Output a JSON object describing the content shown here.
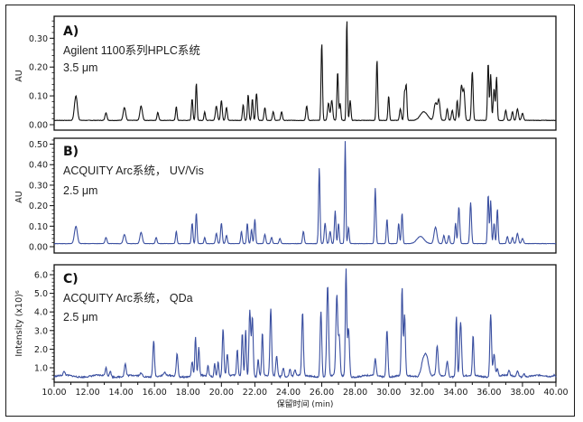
{
  "figure": {
    "xlabel": "保留时间 (min)",
    "x_ticks": [
      "10.00",
      "12.00",
      "14.00",
      "16.00",
      "18.00",
      "20.00",
      "22.00",
      "24.00",
      "26.00",
      "28.00",
      "30.00",
      "32.00",
      "34.00",
      "36.00",
      "38.00",
      "40.00"
    ]
  },
  "panels": [
    {
      "letter": "A)",
      "line1": "Agilent 1100系列HPLC系统",
      "line2": "3.5 μm",
      "ylabel": "AU",
      "y_ticks": [
        "0.00",
        "0.10",
        "0.20",
        "0.30"
      ],
      "color": "#111111"
    },
    {
      "letter": "B)",
      "line1": "ACQUITY Arc系统， UV/Vis",
      "line2": "2.5 μm",
      "ylabel": "AU",
      "y_ticks": [
        "0.00",
        "0.10",
        "0.20",
        "0.30",
        "0.40",
        "0.50"
      ],
      "color": "#3a4fa0"
    },
    {
      "letter": "C)",
      "line1": "ACQUITY Arc系统， QDa",
      "line2": "2.5 μm",
      "ylabel": "Intensity (x10)⁶",
      "y_ticks": [
        "1.0",
        "2.0",
        "3.0",
        "4.0",
        "5.0",
        "6.0"
      ],
      "color": "#3a4fa0"
    }
  ],
  "chart_data": [
    {
      "type": "line",
      "title": "A) Agilent 1100系列HPLC系统 3.5 μm",
      "xlabel": "保留时间 (min)",
      "ylabel": "AU",
      "xlim": [
        10,
        40
      ],
      "ylim": [
        0,
        0.37
      ],
      "baseline": 0.015,
      "peaks": [
        {
          "x": 11.3,
          "y": 0.085,
          "w": 0.12
        },
        {
          "x": 13.1,
          "y": 0.027,
          "w": 0.08
        },
        {
          "x": 14.2,
          "y": 0.045,
          "w": 0.1
        },
        {
          "x": 15.2,
          "y": 0.05,
          "w": 0.1
        },
        {
          "x": 16.2,
          "y": 0.028,
          "w": 0.07
        },
        {
          "x": 17.3,
          "y": 0.048,
          "w": 0.06
        },
        {
          "x": 18.25,
          "y": 0.075,
          "w": 0.06
        },
        {
          "x": 18.5,
          "y": 0.13,
          "w": 0.06
        },
        {
          "x": 19.0,
          "y": 0.03,
          "w": 0.06
        },
        {
          "x": 19.7,
          "y": 0.05,
          "w": 0.08
        },
        {
          "x": 20.0,
          "y": 0.07,
          "w": 0.07
        },
        {
          "x": 20.3,
          "y": 0.045,
          "w": 0.07
        },
        {
          "x": 21.3,
          "y": 0.055,
          "w": 0.06
        },
        {
          "x": 21.6,
          "y": 0.09,
          "w": 0.06
        },
        {
          "x": 21.85,
          "y": 0.075,
          "w": 0.06
        },
        {
          "x": 22.1,
          "y": 0.095,
          "w": 0.07
        },
        {
          "x": 22.6,
          "y": 0.045,
          "w": 0.07
        },
        {
          "x": 23.1,
          "y": 0.03,
          "w": 0.07
        },
        {
          "x": 23.6,
          "y": 0.03,
          "w": 0.07
        },
        {
          "x": 25.1,
          "y": 0.05,
          "w": 0.07
        },
        {
          "x": 26.0,
          "y": 0.27,
          "w": 0.06
        },
        {
          "x": 26.4,
          "y": 0.06,
          "w": 0.08
        },
        {
          "x": 26.6,
          "y": 0.07,
          "w": 0.08
        },
        {
          "x": 26.95,
          "y": 0.17,
          "w": 0.06
        },
        {
          "x": 27.1,
          "y": 0.06,
          "w": 0.06
        },
        {
          "x": 27.5,
          "y": 0.355,
          "w": 0.05
        },
        {
          "x": 27.7,
          "y": 0.07,
          "w": 0.06
        },
        {
          "x": 29.3,
          "y": 0.21,
          "w": 0.06
        },
        {
          "x": 30.0,
          "y": 0.085,
          "w": 0.06
        },
        {
          "x": 30.7,
          "y": 0.04,
          "w": 0.07
        },
        {
          "x": 30.95,
          "y": 0.095,
          "w": 0.06
        },
        {
          "x": 31.05,
          "y": 0.12,
          "w": 0.06
        },
        {
          "x": 32.1,
          "y": 0.03,
          "w": 0.3
        },
        {
          "x": 32.8,
          "y": 0.06,
          "w": 0.12
        },
        {
          "x": 33.0,
          "y": 0.07,
          "w": 0.1
        },
        {
          "x": 33.5,
          "y": 0.04,
          "w": 0.07
        },
        {
          "x": 33.8,
          "y": 0.035,
          "w": 0.07
        },
        {
          "x": 34.1,
          "y": 0.07,
          "w": 0.06
        },
        {
          "x": 34.35,
          "y": 0.12,
          "w": 0.09
        },
        {
          "x": 34.5,
          "y": 0.1,
          "w": 0.08
        },
        {
          "x": 35.0,
          "y": 0.17,
          "w": 0.07
        },
        {
          "x": 35.95,
          "y": 0.2,
          "w": 0.06
        },
        {
          "x": 36.1,
          "y": 0.16,
          "w": 0.06
        },
        {
          "x": 36.3,
          "y": 0.11,
          "w": 0.07
        },
        {
          "x": 36.45,
          "y": 0.15,
          "w": 0.06
        },
        {
          "x": 37.0,
          "y": 0.035,
          "w": 0.07
        },
        {
          "x": 37.4,
          "y": 0.03,
          "w": 0.07
        },
        {
          "x": 37.7,
          "y": 0.04,
          "w": 0.08
        },
        {
          "x": 38.0,
          "y": 0.025,
          "w": 0.08
        }
      ]
    },
    {
      "type": "line",
      "title": "B) ACQUITY Arc系统， UV/Vis 2.5 μm",
      "xlabel": "保留时间 (min)",
      "ylabel": "AU",
      "xlim": [
        10,
        40
      ],
      "ylim": [
        0,
        0.52
      ],
      "baseline": 0.015,
      "peaks": [
        {
          "x": 11.3,
          "y": 0.085,
          "w": 0.12
        },
        {
          "x": 13.1,
          "y": 0.03,
          "w": 0.08
        },
        {
          "x": 14.2,
          "y": 0.045,
          "w": 0.1
        },
        {
          "x": 15.2,
          "y": 0.055,
          "w": 0.1
        },
        {
          "x": 16.1,
          "y": 0.03,
          "w": 0.07
        },
        {
          "x": 17.3,
          "y": 0.06,
          "w": 0.06
        },
        {
          "x": 18.25,
          "y": 0.1,
          "w": 0.06
        },
        {
          "x": 18.5,
          "y": 0.15,
          "w": 0.06
        },
        {
          "x": 19.0,
          "y": 0.03,
          "w": 0.06
        },
        {
          "x": 19.7,
          "y": 0.05,
          "w": 0.07
        },
        {
          "x": 20.0,
          "y": 0.1,
          "w": 0.07
        },
        {
          "x": 20.3,
          "y": 0.04,
          "w": 0.07
        },
        {
          "x": 21.2,
          "y": 0.06,
          "w": 0.06
        },
        {
          "x": 21.55,
          "y": 0.1,
          "w": 0.06
        },
        {
          "x": 21.8,
          "y": 0.07,
          "w": 0.06
        },
        {
          "x": 22.0,
          "y": 0.12,
          "w": 0.06
        },
        {
          "x": 22.6,
          "y": 0.045,
          "w": 0.07
        },
        {
          "x": 23.0,
          "y": 0.03,
          "w": 0.07
        },
        {
          "x": 23.5,
          "y": 0.025,
          "w": 0.07
        },
        {
          "x": 24.9,
          "y": 0.06,
          "w": 0.07
        },
        {
          "x": 25.85,
          "y": 0.37,
          "w": 0.06
        },
        {
          "x": 26.2,
          "y": 0.1,
          "w": 0.07
        },
        {
          "x": 26.5,
          "y": 0.06,
          "w": 0.07
        },
        {
          "x": 26.8,
          "y": 0.16,
          "w": 0.06
        },
        {
          "x": 27.0,
          "y": 0.1,
          "w": 0.06
        },
        {
          "x": 27.4,
          "y": 0.5,
          "w": 0.05
        },
        {
          "x": 27.6,
          "y": 0.08,
          "w": 0.06
        },
        {
          "x": 29.2,
          "y": 0.27,
          "w": 0.06
        },
        {
          "x": 29.9,
          "y": 0.12,
          "w": 0.06
        },
        {
          "x": 30.6,
          "y": 0.1,
          "w": 0.06
        },
        {
          "x": 30.8,
          "y": 0.15,
          "w": 0.06
        },
        {
          "x": 31.9,
          "y": 0.035,
          "w": 0.3
        },
        {
          "x": 32.8,
          "y": 0.08,
          "w": 0.12
        },
        {
          "x": 33.3,
          "y": 0.04,
          "w": 0.07
        },
        {
          "x": 33.6,
          "y": 0.04,
          "w": 0.07
        },
        {
          "x": 34.0,
          "y": 0.1,
          "w": 0.06
        },
        {
          "x": 34.2,
          "y": 0.18,
          "w": 0.07
        },
        {
          "x": 34.9,
          "y": 0.2,
          "w": 0.07
        },
        {
          "x": 35.95,
          "y": 0.24,
          "w": 0.06
        },
        {
          "x": 36.1,
          "y": 0.21,
          "w": 0.06
        },
        {
          "x": 36.3,
          "y": 0.1,
          "w": 0.06
        },
        {
          "x": 36.5,
          "y": 0.17,
          "w": 0.06
        },
        {
          "x": 37.1,
          "y": 0.035,
          "w": 0.07
        },
        {
          "x": 37.4,
          "y": 0.03,
          "w": 0.07
        },
        {
          "x": 37.7,
          "y": 0.05,
          "w": 0.08
        },
        {
          "x": 38.0,
          "y": 0.025,
          "w": 0.08
        }
      ]
    },
    {
      "type": "line",
      "title": "C) ACQUITY Arc系统， QDa 2.5 μm",
      "xlabel": "保留时间 (min)",
      "ylabel": "Intensity (x10)⁶",
      "xlim": [
        10,
        40
      ],
      "ylim": [
        0.2,
        6.3
      ],
      "baseline": 0.55,
      "peaks": [
        {
          "x": 10.6,
          "y": 0.2,
          "w": 0.08
        },
        {
          "x": 13.1,
          "y": 0.45,
          "w": 0.07
        },
        {
          "x": 13.35,
          "y": 0.3,
          "w": 0.07
        },
        {
          "x": 14.25,
          "y": 0.65,
          "w": 0.07
        },
        {
          "x": 15.2,
          "y": 0.15,
          "w": 0.1
        },
        {
          "x": 15.95,
          "y": 1.95,
          "w": 0.07
        },
        {
          "x": 16.6,
          "y": 0.15,
          "w": 0.08
        },
        {
          "x": 17.35,
          "y": 1.25,
          "w": 0.07
        },
        {
          "x": 18.25,
          "y": 0.8,
          "w": 0.06
        },
        {
          "x": 18.45,
          "y": 2.05,
          "w": 0.06
        },
        {
          "x": 18.65,
          "y": 1.5,
          "w": 0.06
        },
        {
          "x": 19.2,
          "y": 0.55,
          "w": 0.06
        },
        {
          "x": 19.6,
          "y": 0.7,
          "w": 0.06
        },
        {
          "x": 19.8,
          "y": 0.8,
          "w": 0.06
        },
        {
          "x": 20.1,
          "y": 2.55,
          "w": 0.07
        },
        {
          "x": 20.35,
          "y": 1.2,
          "w": 0.07
        },
        {
          "x": 20.95,
          "y": 1.4,
          "w": 0.06
        },
        {
          "x": 21.25,
          "y": 2.3,
          "w": 0.06
        },
        {
          "x": 21.45,
          "y": 2.5,
          "w": 0.06
        },
        {
          "x": 21.7,
          "y": 3.6,
          "w": 0.07
        },
        {
          "x": 21.85,
          "y": 3.2,
          "w": 0.07
        },
        {
          "x": 22.2,
          "y": 0.9,
          "w": 0.06
        },
        {
          "x": 22.45,
          "y": 2.35,
          "w": 0.06
        },
        {
          "x": 22.95,
          "y": 3.6,
          "w": 0.07
        },
        {
          "x": 23.3,
          "y": 1.1,
          "w": 0.07
        },
        {
          "x": 23.7,
          "y": 0.5,
          "w": 0.07
        },
        {
          "x": 24.1,
          "y": 0.4,
          "w": 0.07
        },
        {
          "x": 24.4,
          "y": 0.35,
          "w": 0.07
        },
        {
          "x": 24.85,
          "y": 3.4,
          "w": 0.07
        },
        {
          "x": 25.95,
          "y": 3.55,
          "w": 0.07
        },
        {
          "x": 26.35,
          "y": 4.9,
          "w": 0.08
        },
        {
          "x": 26.9,
          "y": 4.35,
          "w": 0.08
        },
        {
          "x": 27.05,
          "y": 2.0,
          "w": 0.07
        },
        {
          "x": 27.45,
          "y": 5.7,
          "w": 0.06
        },
        {
          "x": 27.6,
          "y": 2.6,
          "w": 0.08
        },
        {
          "x": 29.2,
          "y": 0.9,
          "w": 0.07
        },
        {
          "x": 29.9,
          "y": 2.55,
          "w": 0.07
        },
        {
          "x": 30.8,
          "y": 4.75,
          "w": 0.06
        },
        {
          "x": 30.95,
          "y": 3.3,
          "w": 0.07
        },
        {
          "x": 32.1,
          "y": 1.0,
          "w": 0.2
        },
        {
          "x": 32.3,
          "y": 0.7,
          "w": 0.15
        },
        {
          "x": 32.9,
          "y": 1.6,
          "w": 0.08
        },
        {
          "x": 33.5,
          "y": 0.8,
          "w": 0.08
        },
        {
          "x": 34.05,
          "y": 3.3,
          "w": 0.06
        },
        {
          "x": 34.3,
          "y": 2.95,
          "w": 0.08
        },
        {
          "x": 35.05,
          "y": 2.15,
          "w": 0.06
        },
        {
          "x": 36.1,
          "y": 3.4,
          "w": 0.07
        },
        {
          "x": 36.3,
          "y": 1.2,
          "w": 0.08
        },
        {
          "x": 36.5,
          "y": 0.4,
          "w": 0.07
        },
        {
          "x": 37.2,
          "y": 0.25,
          "w": 0.07
        },
        {
          "x": 37.7,
          "y": 0.3,
          "w": 0.08
        },
        {
          "x": 38.1,
          "y": 0.15,
          "w": 0.08
        },
        {
          "x": 39.9,
          "y": 0.1,
          "w": 0.1
        }
      ]
    }
  ]
}
